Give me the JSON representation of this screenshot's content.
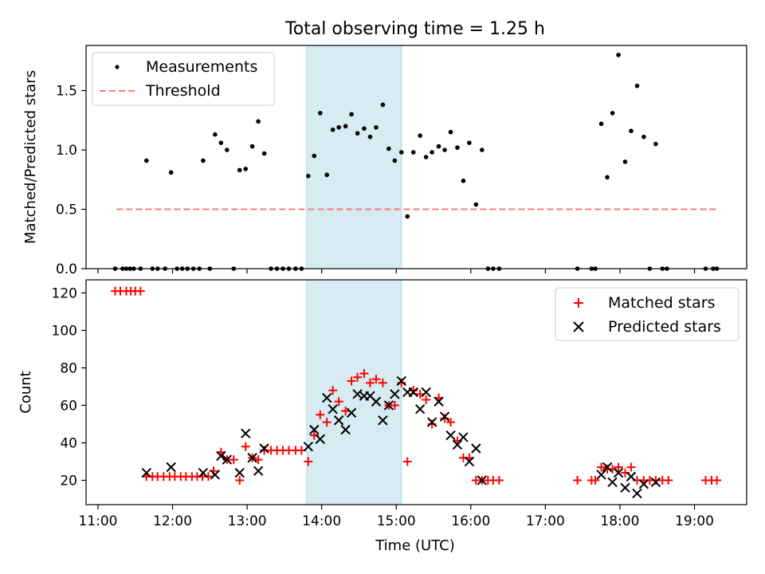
{
  "chart_data": {
    "title": "Total observing time = 1.25 h",
    "x_ticks": [
      "11:00",
      "12:00",
      "13:00",
      "14:00",
      "15:00",
      "16:00",
      "17:00",
      "18:00",
      "19:00"
    ],
    "x_tick_values": [
      11,
      12,
      13,
      14,
      15,
      16,
      17,
      18,
      19
    ],
    "x_range": [
      10.84,
      19.7
    ],
    "xlabel": "Time (UTC)",
    "highlight_span": [
      13.8,
      15.07
    ],
    "top": {
      "type": "scatter",
      "ylabel": "Matched/Predicted stars",
      "ylim": [
        0,
        1.88
      ],
      "y_ticks": [
        "0.0",
        "0.5",
        "1.0",
        "1.5"
      ],
      "y_tick_values": [
        0,
        0.5,
        1.0,
        1.5
      ],
      "legend": {
        "position": "top-left",
        "measurements": "Measurements",
        "threshold": "Threshold"
      },
      "threshold": {
        "value": 0.5,
        "x": [
          11.25,
          19.3
        ],
        "color": "#f47c7c"
      },
      "measurements": [
        [
          11.23,
          0
        ],
        [
          11.33,
          0
        ],
        [
          11.38,
          0
        ],
        [
          11.43,
          0
        ],
        [
          11.48,
          0
        ],
        [
          11.57,
          0
        ],
        [
          11.65,
          0.91
        ],
        [
          11.73,
          0
        ],
        [
          11.8,
          0
        ],
        [
          11.9,
          0
        ],
        [
          11.98,
          0.81
        ],
        [
          12.06,
          0
        ],
        [
          12.13,
          0
        ],
        [
          12.2,
          0
        ],
        [
          12.28,
          0
        ],
        [
          12.36,
          0
        ],
        [
          12.41,
          0.91
        ],
        [
          12.5,
          0
        ],
        [
          12.57,
          1.13
        ],
        [
          12.65,
          1.06
        ],
        [
          12.73,
          1.0
        ],
        [
          12.82,
          0
        ],
        [
          12.9,
          0.83
        ],
        [
          12.98,
          0.84
        ],
        [
          13.07,
          1.03
        ],
        [
          13.15,
          1.24
        ],
        [
          13.23,
          0.97
        ],
        [
          13.32,
          0
        ],
        [
          13.4,
          0
        ],
        [
          13.48,
          0
        ],
        [
          13.56,
          0
        ],
        [
          13.65,
          0
        ],
        [
          13.73,
          0
        ],
        [
          13.82,
          0.78
        ],
        [
          13.9,
          0.95
        ],
        [
          13.98,
          1.31
        ],
        [
          14.07,
          0.79
        ],
        [
          14.15,
          1.17
        ],
        [
          14.23,
          1.19
        ],
        [
          14.32,
          1.2
        ],
        [
          14.4,
          1.3
        ],
        [
          14.48,
          1.14
        ],
        [
          14.57,
          1.18
        ],
        [
          14.65,
          1.11
        ],
        [
          14.73,
          1.19
        ],
        [
          14.82,
          1.38
        ],
        [
          14.9,
          1.01
        ],
        [
          14.98,
          0.91
        ],
        [
          15.07,
          0.98
        ],
        [
          15.15,
          0.44
        ],
        [
          15.23,
          0.98
        ],
        [
          15.32,
          1.12
        ],
        [
          15.4,
          0.94
        ],
        [
          15.48,
          0.98
        ],
        [
          15.57,
          1.03
        ],
        [
          15.65,
          1.0
        ],
        [
          15.73,
          1.15
        ],
        [
          15.82,
          1.02
        ],
        [
          15.9,
          0.74
        ],
        [
          15.98,
          1.06
        ],
        [
          16.07,
          0.54
        ],
        [
          16.15,
          1.0
        ],
        [
          16.23,
          0
        ],
        [
          16.3,
          0
        ],
        [
          16.38,
          0
        ],
        [
          17.43,
          0
        ],
        [
          17.62,
          0
        ],
        [
          17.67,
          0
        ],
        [
          17.75,
          1.22
        ],
        [
          17.83,
          0.77
        ],
        [
          17.9,
          1.31
        ],
        [
          17.98,
          1.8
        ],
        [
          18.07,
          0.9
        ],
        [
          18.15,
          1.16
        ],
        [
          18.23,
          1.54
        ],
        [
          18.32,
          1.11
        ],
        [
          18.4,
          0
        ],
        [
          18.48,
          1.05
        ],
        [
          18.57,
          0
        ],
        [
          18.63,
          0
        ],
        [
          19.15,
          0
        ],
        [
          19.25,
          0
        ],
        [
          19.3,
          0
        ]
      ]
    },
    "bottom": {
      "type": "scatter",
      "ylabel": "Count",
      "ylim": [
        7,
        127
      ],
      "y_ticks": [
        "20",
        "40",
        "60",
        "80",
        "100",
        "120"
      ],
      "y_tick_values": [
        20,
        40,
        60,
        80,
        100,
        120
      ],
      "legend": {
        "position": "top-right",
        "matched": "Matched stars",
        "predicted": "Predicted stars"
      },
      "matched": [
        [
          11.23,
          121
        ],
        [
          11.3,
          121
        ],
        [
          11.38,
          121
        ],
        [
          11.44,
          121
        ],
        [
          11.5,
          121
        ],
        [
          11.57,
          121
        ],
        [
          11.65,
          22
        ],
        [
          11.73,
          22
        ],
        [
          11.8,
          22
        ],
        [
          11.88,
          22
        ],
        [
          11.96,
          22
        ],
        [
          12.03,
          22
        ],
        [
          12.11,
          22
        ],
        [
          12.18,
          22
        ],
        [
          12.26,
          22
        ],
        [
          12.33,
          22
        ],
        [
          12.4,
          22
        ],
        [
          12.48,
          22
        ],
        [
          12.55,
          25
        ],
        [
          12.65,
          35
        ],
        [
          12.73,
          31
        ],
        [
          12.82,
          31
        ],
        [
          12.9,
          20
        ],
        [
          12.98,
          38
        ],
        [
          13.07,
          32
        ],
        [
          13.15,
          31
        ],
        [
          13.23,
          36
        ],
        [
          13.32,
          36
        ],
        [
          13.4,
          36
        ],
        [
          13.48,
          36
        ],
        [
          13.56,
          36
        ],
        [
          13.65,
          36
        ],
        [
          13.73,
          36
        ],
        [
          13.82,
          30
        ],
        [
          13.9,
          44
        ],
        [
          13.98,
          55
        ],
        [
          14.07,
          51
        ],
        [
          14.15,
          68
        ],
        [
          14.23,
          62
        ],
        [
          14.32,
          57
        ],
        [
          14.4,
          73
        ],
        [
          14.48,
          75
        ],
        [
          14.57,
          77
        ],
        [
          14.65,
          72
        ],
        [
          14.73,
          74
        ],
        [
          14.82,
          72
        ],
        [
          14.9,
          60
        ],
        [
          14.98,
          60
        ],
        [
          15.07,
          72
        ],
        [
          15.15,
          30
        ],
        [
          15.23,
          68
        ],
        [
          15.32,
          66
        ],
        [
          15.4,
          63
        ],
        [
          15.48,
          50
        ],
        [
          15.57,
          64
        ],
        [
          15.65,
          53
        ],
        [
          15.73,
          51
        ],
        [
          15.82,
          41
        ],
        [
          15.9,
          32
        ],
        [
          15.98,
          32
        ],
        [
          16.07,
          20
        ],
        [
          16.15,
          20
        ],
        [
          16.23,
          20
        ],
        [
          16.3,
          20
        ],
        [
          16.38,
          20
        ],
        [
          17.43,
          20
        ],
        [
          17.62,
          20
        ],
        [
          17.67,
          20
        ],
        [
          17.75,
          27
        ],
        [
          17.83,
          26
        ],
        [
          17.9,
          26
        ],
        [
          17.98,
          27
        ],
        [
          18.07,
          24
        ],
        [
          18.15,
          27
        ],
        [
          18.23,
          20
        ],
        [
          18.32,
          20
        ],
        [
          18.4,
          20
        ],
        [
          18.48,
          20
        ],
        [
          18.57,
          20
        ],
        [
          18.65,
          20
        ],
        [
          19.15,
          20
        ],
        [
          19.23,
          20
        ],
        [
          19.3,
          20
        ]
      ],
      "predicted": [
        [
          11.65,
          24
        ],
        [
          11.98,
          27
        ],
        [
          12.41,
          24
        ],
        [
          12.57,
          23
        ],
        [
          12.65,
          33
        ],
        [
          12.73,
          31
        ],
        [
          12.9,
          24
        ],
        [
          12.98,
          45
        ],
        [
          13.07,
          32
        ],
        [
          13.15,
          25
        ],
        [
          13.23,
          37
        ],
        [
          13.82,
          38
        ],
        [
          13.9,
          47
        ],
        [
          13.98,
          42
        ],
        [
          14.07,
          64
        ],
        [
          14.15,
          58
        ],
        [
          14.23,
          52
        ],
        [
          14.32,
          47
        ],
        [
          14.4,
          56
        ],
        [
          14.48,
          66
        ],
        [
          14.57,
          65
        ],
        [
          14.65,
          65
        ],
        [
          14.73,
          62
        ],
        [
          14.82,
          52
        ],
        [
          14.9,
          60
        ],
        [
          14.98,
          66
        ],
        [
          15.07,
          73
        ],
        [
          15.15,
          67
        ],
        [
          15.23,
          67
        ],
        [
          15.32,
          58
        ],
        [
          15.4,
          67
        ],
        [
          15.48,
          51
        ],
        [
          15.57,
          62
        ],
        [
          15.65,
          54
        ],
        [
          15.73,
          44
        ],
        [
          15.82,
          39
        ],
        [
          15.9,
          43
        ],
        [
          15.98,
          30
        ],
        [
          16.07,
          37
        ],
        [
          16.15,
          20
        ],
        [
          17.75,
          23
        ],
        [
          17.83,
          27
        ],
        [
          17.9,
          19
        ],
        [
          17.98,
          24
        ],
        [
          18.07,
          16
        ],
        [
          18.15,
          22
        ],
        [
          18.23,
          13
        ],
        [
          18.32,
          18
        ],
        [
          18.48,
          19
        ]
      ]
    }
  }
}
